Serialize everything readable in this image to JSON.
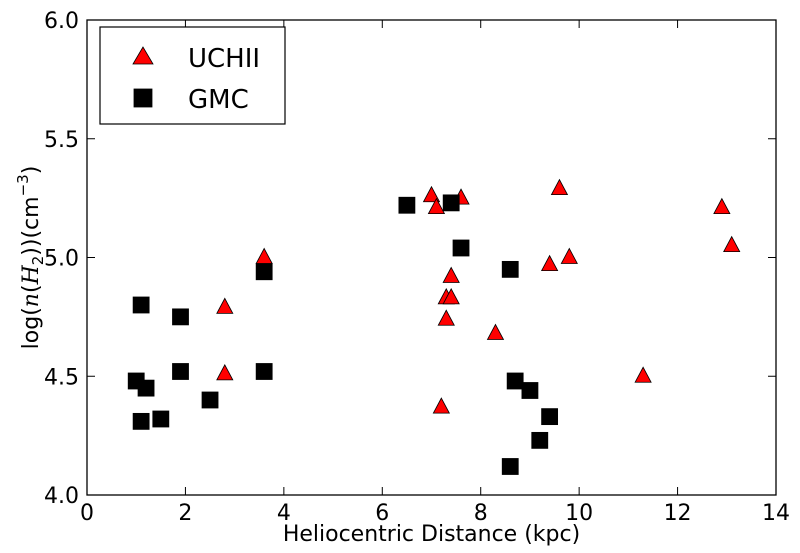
{
  "chart_data": {
    "type": "scatter",
    "title": "",
    "xlabel": "Heliocentric Distance (kpc)",
    "ylabel_parts": {
      "prefix": "log(",
      "italic_n": "n",
      "open": "(",
      "italic_H": "H",
      "sub": "2",
      "close": "))(cm",
      "sup": "−3",
      "end": ")"
    },
    "xlim": [
      0,
      14
    ],
    "ylim": [
      4.0,
      6.0
    ],
    "xticks": [
      0,
      2,
      4,
      6,
      8,
      10,
      12,
      14
    ],
    "yticks": [
      4.0,
      4.5,
      5.0,
      5.5,
      6.0
    ],
    "xtick_labels": [
      "0",
      "2",
      "4",
      "6",
      "8",
      "10",
      "12",
      "14"
    ],
    "ytick_labels": [
      "4.0",
      "4.5",
      "5.0",
      "5.5",
      "6.0"
    ],
    "legend_position": "top-left",
    "series": [
      {
        "name": "UCHII",
        "marker": "triangle",
        "color": "#ff0000",
        "points": [
          [
            2.8,
            4.79
          ],
          [
            2.8,
            4.51
          ],
          [
            3.6,
            5.0
          ],
          [
            7.0,
            5.26
          ],
          [
            7.1,
            5.21
          ],
          [
            7.6,
            5.25
          ],
          [
            7.4,
            4.92
          ],
          [
            7.3,
            4.83
          ],
          [
            7.4,
            4.83
          ],
          [
            7.3,
            4.74
          ],
          [
            7.2,
            4.37
          ],
          [
            8.3,
            4.68
          ],
          [
            9.4,
            4.97
          ],
          [
            9.6,
            5.29
          ],
          [
            9.8,
            5.0
          ],
          [
            11.3,
            4.5
          ],
          [
            12.9,
            5.21
          ],
          [
            13.1,
            5.05
          ]
        ]
      },
      {
        "name": "GMC",
        "marker": "square",
        "color": "#000000",
        "points": [
          [
            1.0,
            4.48
          ],
          [
            1.1,
            4.8
          ],
          [
            1.2,
            4.45
          ],
          [
            1.1,
            4.31
          ],
          [
            1.5,
            4.32
          ],
          [
            1.9,
            4.75
          ],
          [
            1.9,
            4.52
          ],
          [
            2.5,
            4.4
          ],
          [
            3.6,
            4.94
          ],
          [
            3.6,
            4.52
          ],
          [
            6.5,
            5.22
          ],
          [
            7.4,
            5.23
          ],
          [
            7.6,
            5.04
          ],
          [
            8.6,
            4.95
          ],
          [
            8.7,
            4.48
          ],
          [
            9.0,
            4.44
          ],
          [
            9.4,
            4.33
          ],
          [
            9.2,
            4.23
          ],
          [
            8.6,
            4.12
          ]
        ]
      }
    ]
  }
}
